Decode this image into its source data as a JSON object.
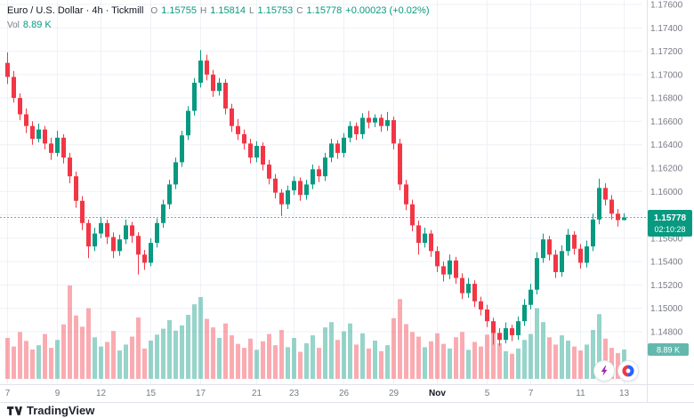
{
  "colors": {
    "up": "#089981",
    "down": "#f23645",
    "grid": "#eef1f6",
    "separator": "#e0e3eb",
    "axis_text": "#787b86",
    "badge_price_bg": "#089981",
    "badge_volume_bg": "#63b8ae",
    "lightning": "#9c27b0",
    "roundel_left": "#f23645",
    "roundel_right": "#2962ff"
  },
  "legend": {
    "title": "Euro / U.S. Dollar · 4h · Tickmill",
    "ohlc": {
      "o_label": "O",
      "o": "1.15755",
      "h_label": "H",
      "h": "1.15814",
      "l_label": "L",
      "l": "1.15753",
      "c_label": "C",
      "c": "1.15778",
      "change": "+0.00023 (+0.02%)"
    },
    "volume_row": {
      "label": "Vol",
      "value": "8.89 K"
    }
  },
  "price_scale": {
    "price": "1.15778",
    "countdown": "02:10:28",
    "volume_badge": "8.89 K"
  },
  "footer": {
    "brand": "TradingView"
  },
  "chart_data": {
    "type": "candlestick",
    "title": "Euro / U.S. Dollar 4h (Tickmill) with volume",
    "last_price": 1.15778,
    "axis": {
      "price_top": 1.176,
      "price_top_y": 5,
      "price_bottom": 1.148,
      "price_bottom_y": 373
    },
    "price_ticks": [
      "1.17600",
      "1.17400",
      "1.17200",
      "1.17000",
      "1.16800",
      "1.16600",
      "1.16400",
      "1.16200",
      "1.16000",
      "1.15800",
      "1.15600",
      "1.15400",
      "1.15200",
      "1.15000",
      "1.14800"
    ],
    "time_ticks": [
      {
        "i": 0,
        "label": "7"
      },
      {
        "i": 8,
        "label": "9"
      },
      {
        "i": 15,
        "label": "12"
      },
      {
        "i": 23,
        "label": "15"
      },
      {
        "i": 31,
        "label": "17"
      },
      {
        "i": 40,
        "label": "21"
      },
      {
        "i": 46,
        "label": "23"
      },
      {
        "i": 54,
        "label": "26"
      },
      {
        "i": 62,
        "label": "29"
      },
      {
        "i": 69,
        "label": "Nov",
        "major": true
      },
      {
        "i": 77,
        "label": "5"
      },
      {
        "i": 84,
        "label": "7"
      },
      {
        "i": 92,
        "label": "11"
      },
      {
        "i": 99,
        "label": "13"
      }
    ],
    "candles": [
      [
        1.171,
        1.1719,
        1.1692,
        1.1698
      ],
      [
        1.1698,
        1.1703,
        1.1676,
        1.168
      ],
      [
        1.168,
        1.1684,
        1.1661,
        1.1666
      ],
      [
        1.1666,
        1.1671,
        1.165,
        1.1656
      ],
      [
        1.1656,
        1.166,
        1.164,
        1.1645
      ],
      [
        1.1645,
        1.1658,
        1.1642,
        1.1653
      ],
      [
        1.1653,
        1.1656,
        1.1636,
        1.1641
      ],
      [
        1.1641,
        1.1646,
        1.1627,
        1.1633
      ],
      [
        1.1633,
        1.1652,
        1.163,
        1.1646
      ],
      [
        1.1646,
        1.1649,
        1.1624,
        1.1629
      ],
      [
        1.1629,
        1.1633,
        1.1607,
        1.1613
      ],
      [
        1.1613,
        1.1617,
        1.1586,
        1.1592
      ],
      [
        1.1592,
        1.1596,
        1.1567,
        1.1573
      ],
      [
        1.1573,
        1.1576,
        1.1543,
        1.1553
      ],
      [
        1.1553,
        1.1569,
        1.1549,
        1.1564
      ],
      [
        1.1564,
        1.1578,
        1.156,
        1.1573
      ],
      [
        1.1573,
        1.1576,
        1.1555,
        1.1561
      ],
      [
        1.1561,
        1.1565,
        1.1543,
        1.1549
      ],
      [
        1.1549,
        1.1563,
        1.1545,
        1.1559
      ],
      [
        1.1559,
        1.1576,
        1.1555,
        1.1571
      ],
      [
        1.1571,
        1.1574,
        1.1556,
        1.1562
      ],
      [
        1.1562,
        1.1565,
        1.1529,
        1.1546
      ],
      [
        1.1546,
        1.155,
        1.1533,
        1.1539
      ],
      [
        1.1539,
        1.156,
        1.1536,
        1.1556
      ],
      [
        1.1556,
        1.1577,
        1.1552,
        1.1573
      ],
      [
        1.1573,
        1.1593,
        1.1569,
        1.1589
      ],
      [
        1.1589,
        1.161,
        1.1585,
        1.1606
      ],
      [
        1.1606,
        1.1629,
        1.1602,
        1.1625
      ],
      [
        1.1625,
        1.1652,
        1.1621,
        1.1648
      ],
      [
        1.1648,
        1.1673,
        1.1644,
        1.1669
      ],
      [
        1.1669,
        1.1697,
        1.1665,
        1.1693
      ],
      [
        1.1693,
        1.1721,
        1.1689,
        1.1712
      ],
      [
        1.1712,
        1.1717,
        1.1695,
        1.17
      ],
      [
        1.17,
        1.1704,
        1.1681,
        1.1686
      ],
      [
        1.1686,
        1.1697,
        1.1682,
        1.1693
      ],
      [
        1.1693,
        1.1696,
        1.1666,
        1.1671
      ],
      [
        1.1671,
        1.1675,
        1.1651,
        1.1656
      ],
      [
        1.1656,
        1.1662,
        1.1644,
        1.1649
      ],
      [
        1.1649,
        1.1653,
        1.1636,
        1.1641
      ],
      [
        1.1641,
        1.1645,
        1.1624,
        1.1629
      ],
      [
        1.1629,
        1.1643,
        1.1625,
        1.1639
      ],
      [
        1.1639,
        1.1642,
        1.1618,
        1.1623
      ],
      [
        1.1623,
        1.1627,
        1.1606,
        1.1611
      ],
      [
        1.1611,
        1.1615,
        1.1594,
        1.1599
      ],
      [
        1.1599,
        1.1602,
        1.1579,
        1.1589
      ],
      [
        1.1589,
        1.1605,
        1.1585,
        1.1601
      ],
      [
        1.1601,
        1.1613,
        1.1597,
        1.1609
      ],
      [
        1.1609,
        1.1612,
        1.1592,
        1.1597
      ],
      [
        1.1597,
        1.161,
        1.1593,
        1.1606
      ],
      [
        1.1606,
        1.1623,
        1.1602,
        1.1619
      ],
      [
        1.1619,
        1.1622,
        1.1608,
        1.1613
      ],
      [
        1.1613,
        1.1633,
        1.1609,
        1.1629
      ],
      [
        1.1629,
        1.1645,
        1.1625,
        1.1641
      ],
      [
        1.1641,
        1.1644,
        1.1628,
        1.1633
      ],
      [
        1.1633,
        1.165,
        1.1629,
        1.1646
      ],
      [
        1.1646,
        1.166,
        1.1642,
        1.1656
      ],
      [
        1.1656,
        1.1659,
        1.1644,
        1.1649
      ],
      [
        1.1649,
        1.1667,
        1.1645,
        1.1663
      ],
      [
        1.1663,
        1.1669,
        1.1654,
        1.1659
      ],
      [
        1.1659,
        1.1666,
        1.1655,
        1.1663
      ],
      [
        1.1663,
        1.1666,
        1.1651,
        1.1656
      ],
      [
        1.1656,
        1.1668,
        1.1652,
        1.1661
      ],
      [
        1.1661,
        1.1664,
        1.1636,
        1.1641
      ],
      [
        1.1641,
        1.1645,
        1.1601,
        1.1606
      ],
      [
        1.1606,
        1.161,
        1.1584,
        1.1589
      ],
      [
        1.1589,
        1.1593,
        1.1566,
        1.1571
      ],
      [
        1.1571,
        1.1575,
        1.1546,
        1.1556
      ],
      [
        1.1556,
        1.1569,
        1.1552,
        1.1564
      ],
      [
        1.1564,
        1.1567,
        1.1544,
        1.1549
      ],
      [
        1.1549,
        1.1553,
        1.1531,
        1.1536
      ],
      [
        1.1536,
        1.154,
        1.1523,
        1.1529
      ],
      [
        1.1529,
        1.1546,
        1.1525,
        1.1541
      ],
      [
        1.1541,
        1.1544,
        1.1521,
        1.1526
      ],
      [
        1.1526,
        1.153,
        1.1508,
        1.1513
      ],
      [
        1.1513,
        1.1526,
        1.1509,
        1.1521
      ],
      [
        1.1521,
        1.1524,
        1.1501,
        1.1506
      ],
      [
        1.1506,
        1.151,
        1.1494,
        1.1499
      ],
      [
        1.1499,
        1.1503,
        1.1484,
        1.1489
      ],
      [
        1.1489,
        1.1492,
        1.1469,
        1.1479
      ],
      [
        1.1479,
        1.1483,
        1.1468,
        1.1473
      ],
      [
        1.1473,
        1.1488,
        1.147,
        1.1483
      ],
      [
        1.1483,
        1.1486,
        1.1472,
        1.1477
      ],
      [
        1.1477,
        1.1493,
        1.1473,
        1.1489
      ],
      [
        1.1489,
        1.1508,
        1.1485,
        1.1503
      ],
      [
        1.1503,
        1.1521,
        1.1499,
        1.1516
      ],
      [
        1.1516,
        1.1548,
        1.1512,
        1.1543
      ],
      [
        1.1543,
        1.1564,
        1.1539,
        1.1559
      ],
      [
        1.1559,
        1.1562,
        1.1541,
        1.1546
      ],
      [
        1.1546,
        1.155,
        1.1526,
        1.1531
      ],
      [
        1.1531,
        1.1554,
        1.1527,
        1.1549
      ],
      [
        1.1549,
        1.1568,
        1.1545,
        1.1563
      ],
      [
        1.1563,
        1.1566,
        1.1546,
        1.1551
      ],
      [
        1.1551,
        1.1555,
        1.1534,
        1.1539
      ],
      [
        1.1539,
        1.1558,
        1.1535,
        1.1553
      ],
      [
        1.1553,
        1.1581,
        1.1549,
        1.1576
      ],
      [
        1.1576,
        1.1611,
        1.1572,
        1.1603
      ],
      [
        1.1603,
        1.1607,
        1.1588,
        1.1593
      ],
      [
        1.1593,
        1.1597,
        1.1576,
        1.1581
      ],
      [
        1.1581,
        1.1585,
        1.157,
        1.15755
      ],
      [
        1.15755,
        1.15814,
        1.15753,
        1.15778
      ]
    ],
    "volumes": [
      12.4,
      9.8,
      14.2,
      11.5,
      8.9,
      10.2,
      13.6,
      9.4,
      11.8,
      16.5,
      28.3,
      19.2,
      15.8,
      21.4,
      12.6,
      9.8,
      11.2,
      14.5,
      8.6,
      10.4,
      12.8,
      18.6,
      9.2,
      11.6,
      13.4,
      15.2,
      17.8,
      14.6,
      16.2,
      19.4,
      22.6,
      24.8,
      18.2,
      15.6,
      12.4,
      16.8,
      13.2,
      10.6,
      9.4,
      12.2,
      8.8,
      11.4,
      13.6,
      10.2,
      14.8,
      9.6,
      12.4,
      8.2,
      10.8,
      13.2,
      9.4,
      15.6,
      17.2,
      11.8,
      14.4,
      16.8,
      10.4,
      13.8,
      9.2,
      11.6,
      8.4,
      10.2,
      18.4,
      24.2,
      16.6,
      14.2,
      12.8,
      9.6,
      11.4,
      13.8,
      10.6,
      9.2,
      12.6,
      14.2,
      8.8,
      11.2,
      9.8,
      13.4,
      16.2,
      10.8,
      8.4,
      7.6,
      9.2,
      11.8,
      13.6,
      21.4,
      17.2,
      12.6,
      10.4,
      13.2,
      11.6,
      9.8,
      8.6,
      10.4,
      14.8,
      19.6,
      12.2,
      9.4,
      7.8,
      8.89
    ]
  }
}
